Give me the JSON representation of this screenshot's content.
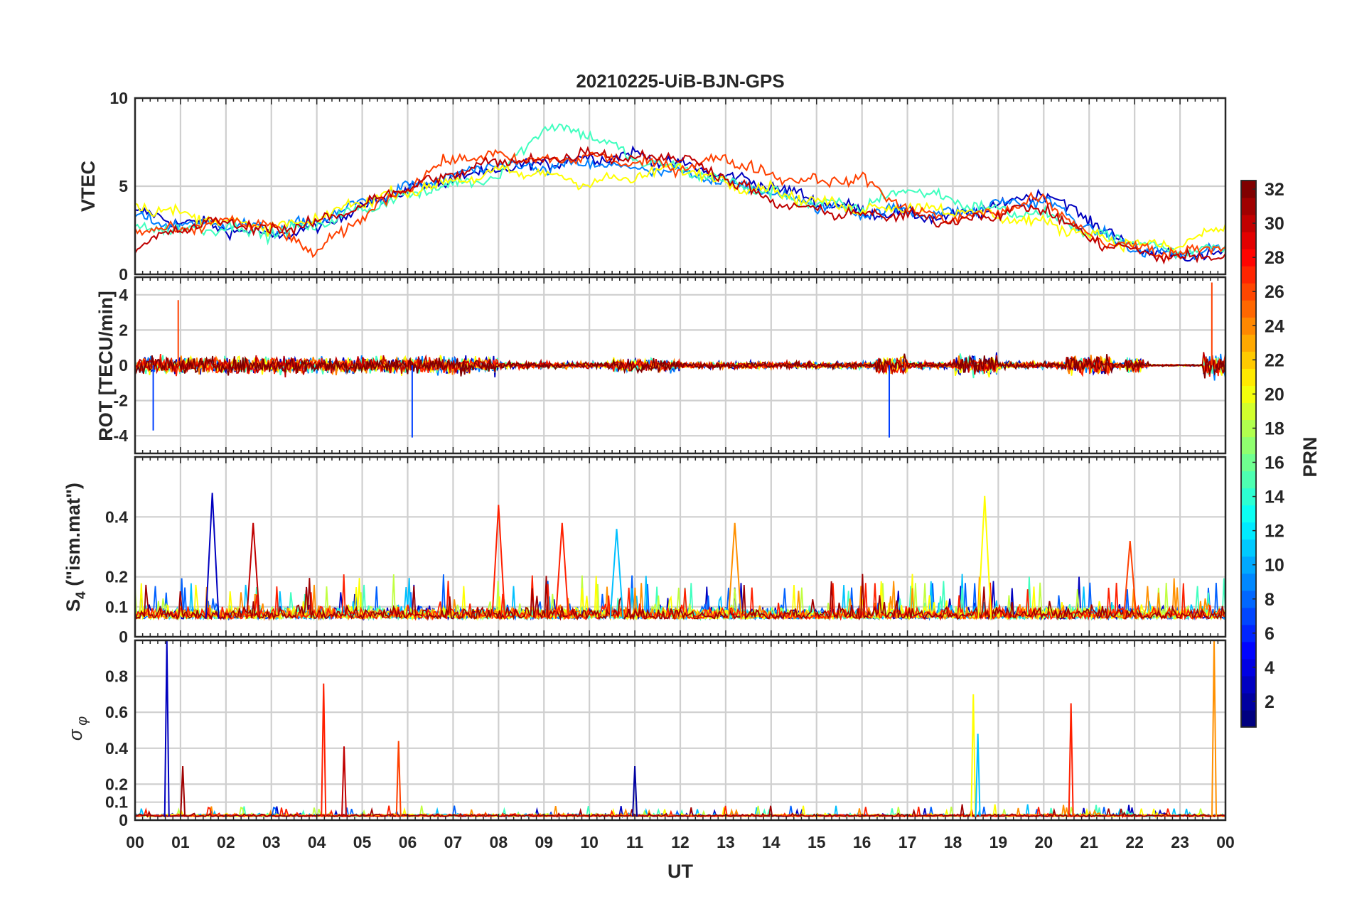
{
  "chart_data": {
    "type": "line",
    "title": "20210225-UiB-BJN-GPS",
    "xlabel": "UT",
    "x_ticks": [
      "00",
      "01",
      "02",
      "03",
      "04",
      "05",
      "06",
      "07",
      "08",
      "09",
      "10",
      "11",
      "12",
      "13",
      "14",
      "15",
      "16",
      "17",
      "18",
      "19",
      "20",
      "21",
      "22",
      "23",
      "00"
    ],
    "xlim_hours": [
      0,
      24
    ],
    "grid": true,
    "colorbar": {
      "label": "PRN",
      "range": [
        1,
        32
      ],
      "ticks": [
        "2",
        "4",
        "6",
        "8",
        "10",
        "12",
        "14",
        "16",
        "18",
        "20",
        "22",
        "24",
        "26",
        "28",
        "30",
        "32"
      ],
      "colormap": "jet",
      "placement": "right"
    },
    "panels": [
      {
        "id": "vtec",
        "ylabel": "VTEC",
        "ylim": [
          0,
          10
        ],
        "yticks": [
          "0",
          "5",
          "10"
        ],
        "representative_series": [
          {
            "name": "PRN 2",
            "color": "#0000bf",
            "x": [
              0,
              1,
              2,
              3,
              4,
              5,
              6,
              7,
              8,
              9,
              10,
              11,
              12,
              13,
              14,
              15,
              16,
              17,
              18,
              19,
              20,
              21,
              22,
              23,
              24
            ],
            "y": [
              3.5,
              3.0,
              2.6,
              2.2,
              2.6,
              3.9,
              4.8,
              5.4,
              5.9,
              6.3,
              6.6,
              6.8,
              6.2,
              5.6,
              5.0,
              4.2,
              3.6,
              3.4,
              3.2,
              3.9,
              4.7,
              3.1,
              1.5,
              1.0,
              1.2
            ]
          },
          {
            "name": "PRN 10",
            "color": "#0080ff",
            "x": [
              0,
              1,
              2,
              3,
              4,
              5,
              6,
              7,
              8,
              9,
              10,
              11,
              12,
              13,
              14,
              15,
              16,
              17,
              18,
              19,
              20,
              21,
              22,
              23,
              24
            ],
            "y": [
              3.2,
              2.8,
              2.9,
              2.5,
              3.0,
              4.1,
              4.9,
              5.6,
              6.2,
              6.0,
              6.3,
              6.0,
              5.7,
              5.3,
              4.6,
              3.9,
              3.5,
              3.6,
              3.4,
              4.0,
              4.2,
              2.6,
              1.4,
              1.1,
              1.4
            ]
          },
          {
            "name": "PRN 16",
            "color": "#40ffbf",
            "x": [
              0,
              1,
              2,
              3,
              4,
              5,
              6,
              7,
              8,
              9,
              10,
              11,
              12,
              13,
              14,
              15,
              16,
              17,
              18,
              19,
              20,
              21,
              22,
              23,
              24
            ],
            "y": [
              2.8,
              2.5,
              2.7,
              2.3,
              2.8,
              3.7,
              4.5,
              5.1,
              5.6,
              8.4,
              8.0,
              6.5,
              6.0,
              5.3,
              4.6,
              4.0,
              3.8,
              4.9,
              4.2,
              3.6,
              3.4,
              2.4,
              1.8,
              1.3,
              1.6
            ]
          },
          {
            "name": "PRN 20",
            "color": "#ffff00",
            "x": [
              0,
              1,
              2,
              3,
              4,
              5,
              6,
              7,
              8,
              9,
              10,
              11,
              12,
              13,
              14,
              15,
              16,
              17,
              18,
              19,
              20,
              21,
              22,
              23,
              24
            ],
            "y": [
              4.0,
              3.4,
              3.0,
              2.6,
              3.1,
              4.2,
              4.7,
              5.3,
              5.8,
              5.7,
              5.2,
              5.5,
              6.1,
              5.2,
              4.8,
              4.1,
              3.7,
              3.9,
              3.6,
              3.3,
              2.9,
              2.3,
              1.7,
              1.6,
              2.8
            ]
          },
          {
            "name": "PRN 26",
            "color": "#ff4000",
            "x": [
              0,
              1,
              2,
              3,
              4,
              5,
              6,
              7,
              8,
              9,
              10,
              11,
              12,
              13,
              14,
              15,
              16,
              17,
              18,
              19,
              20,
              21,
              22,
              23,
              24
            ],
            "y": [
              2.6,
              2.4,
              3.1,
              2.7,
              1.2,
              3.3,
              5.0,
              6.6,
              6.7,
              6.4,
              6.7,
              6.3,
              6.1,
              6.6,
              5.6,
              5.3,
              5.4,
              3.7,
              3.1,
              3.6,
              4.3,
              2.1,
              1.5,
              1.2,
              1.8
            ]
          },
          {
            "name": "PRN 30",
            "color": "#bf0000",
            "x": [
              0,
              1,
              2,
              3,
              4,
              5,
              6,
              7,
              8,
              9,
              10,
              11,
              12,
              13,
              14,
              15,
              16,
              17,
              18,
              19,
              20,
              21,
              22,
              23,
              24
            ],
            "y": [
              1.4,
              2.6,
              3.0,
              2.5,
              2.9,
              4.0,
              4.9,
              5.7,
              6.4,
              6.5,
              6.9,
              6.6,
              6.7,
              5.5,
              4.1,
              3.6,
              3.4,
              3.3,
              3.0,
              3.5,
              3.8,
              2.0,
              1.3,
              0.9,
              1.1
            ]
          }
        ]
      },
      {
        "id": "rot",
        "ylabel": "ROT [TECU/min]",
        "ylim": [
          -5,
          5
        ],
        "yticks": [
          "-4",
          "-2",
          "0",
          "2",
          "4"
        ],
        "approx_extremes": [
          {
            "x_hour": 6.1,
            "y": -4.1
          },
          {
            "x_hour": 16.6,
            "y": -4.1
          },
          {
            "x_hour": 0.4,
            "y": -3.7
          },
          {
            "x_hour": 23.7,
            "y": 4.7
          },
          {
            "x_hour": 0.95,
            "y": 3.7
          }
        ],
        "typical_band": [
          -0.6,
          0.6
        ]
      },
      {
        "id": "s4",
        "ylabel": "S4 (\"ism.mat\")",
        "ylim": [
          0,
          0.6
        ],
        "yticks": [
          "0",
          "0.1",
          "0.2",
          "0.4"
        ],
        "baseline": 0.06,
        "approx_peaks": [
          {
            "x_hour": 1.7,
            "y": 0.48
          },
          {
            "x_hour": 8.0,
            "y": 0.44
          },
          {
            "x_hour": 18.7,
            "y": 0.47
          },
          {
            "x_hour": 13.2,
            "y": 0.38
          },
          {
            "x_hour": 9.4,
            "y": 0.38
          },
          {
            "x_hour": 10.6,
            "y": 0.36
          },
          {
            "x_hour": 2.6,
            "y": 0.38
          },
          {
            "x_hour": 21.9,
            "y": 0.32
          }
        ]
      },
      {
        "id": "sigma_phi",
        "ylabel": "σφ",
        "ylim": [
          0,
          1
        ],
        "yticks": [
          "0",
          "0.1",
          "0.2",
          "0.4",
          "0.6",
          "0.8"
        ],
        "baseline": 0.02,
        "approx_peaks": [
          {
            "x_hour": 0.7,
            "y": 1.0
          },
          {
            "x_hour": 4.15,
            "y": 0.76
          },
          {
            "x_hour": 18.45,
            "y": 0.7
          },
          {
            "x_hour": 23.75,
            "y": 1.0
          },
          {
            "x_hour": 20.6,
            "y": 0.65
          },
          {
            "x_hour": 18.55,
            "y": 0.48
          },
          {
            "x_hour": 4.6,
            "y": 0.41
          },
          {
            "x_hour": 5.8,
            "y": 0.44
          },
          {
            "x_hour": 11.0,
            "y": 0.3
          },
          {
            "x_hour": 1.05,
            "y": 0.3
          }
        ]
      }
    ]
  }
}
